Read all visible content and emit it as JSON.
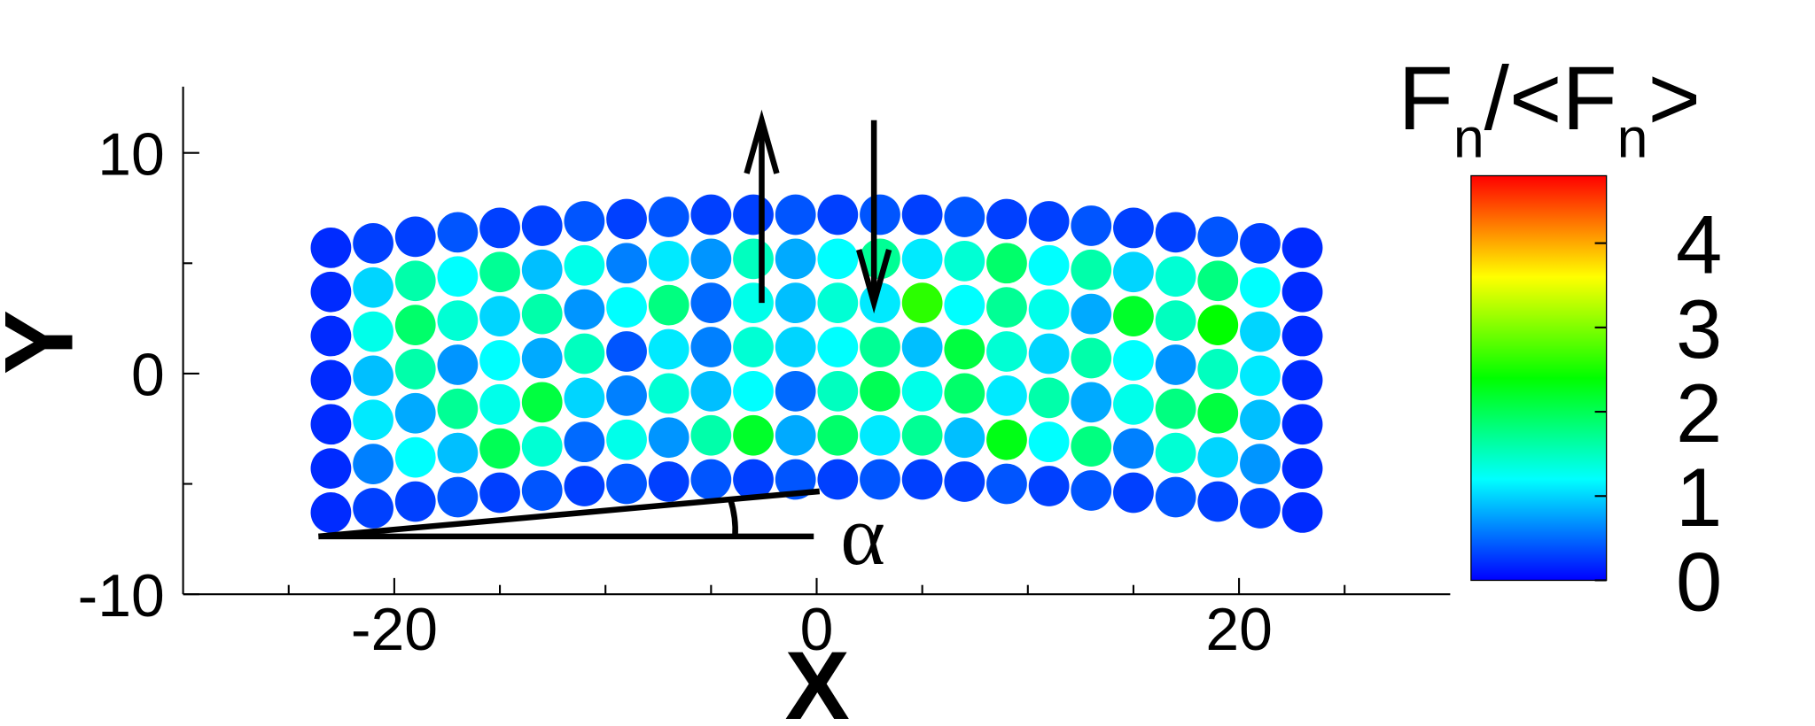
{
  "chart_data": {
    "type": "scatter",
    "x_label": "X",
    "y_label": "Y",
    "xlim": [
      -30,
      30
    ],
    "ylim": [
      -10,
      13
    ],
    "xticks": [
      -20,
      0,
      20
    ],
    "yticks": [
      -10,
      0,
      10
    ],
    "xminorticks": [
      -25,
      -15,
      -10,
      -5,
      5,
      10,
      15,
      25
    ],
    "yminorticks": [
      -5,
      5
    ],
    "colorbar_title_parts": [
      "F",
      "n",
      "/<F",
      "n",
      ">"
    ],
    "clim": [
      0,
      4.8
    ],
    "cticks": [
      0,
      1,
      2,
      3,
      4
    ],
    "colormap": [
      "#0000ff",
      "#00ffff",
      "#00ff00",
      "#ffff00",
      "#ff0000"
    ],
    "annotation": "α",
    "series": [
      {
        "x": [
          -23,
          -21,
          -19,
          -17,
          -15,
          -13,
          -11,
          -9,
          -7,
          -5,
          -3,
          -1,
          1,
          3,
          5,
          7,
          9,
          11,
          13,
          15,
          17,
          19,
          21,
          23
        ],
        "y": [
          -6.3,
          -6.1,
          -5.8,
          -5.6,
          -5.4,
          -5.3,
          -5.1,
          -5.0,
          -4.9,
          -4.8,
          -4.8,
          -4.8,
          -4.8,
          -4.8,
          -4.8,
          -4.9,
          -5.0,
          -5.1,
          -5.3,
          -5.4,
          -5.6,
          -5.8,
          -6.1,
          -6.3
        ],
        "values": [
          0.2,
          0.3,
          0.3,
          0.4,
          0.3,
          0.4,
          0.3,
          0.4,
          0.3,
          0.4,
          0.3,
          0.4,
          0.3,
          0.4,
          0.3,
          0.3,
          0.4,
          0.3,
          0.4,
          0.3,
          0.4,
          0.3,
          0.3,
          0.2
        ]
      },
      {
        "x": [
          -23,
          -21,
          -19,
          -17,
          -15,
          -13,
          -11,
          -9,
          -7,
          -5,
          -3,
          -1,
          1,
          3,
          5,
          7,
          9,
          11,
          13,
          15,
          17,
          19,
          21,
          23
        ],
        "y": [
          -4.3,
          -4.1,
          -3.8,
          -3.6,
          -3.4,
          -3.3,
          -3.1,
          -3.0,
          -2.9,
          -2.8,
          -2.8,
          -2.8,
          -2.8,
          -2.8,
          -2.8,
          -2.9,
          -3.0,
          -3.1,
          -3.3,
          -3.4,
          -3.6,
          -3.8,
          -4.1,
          -4.3
        ],
        "values": [
          0.2,
          0.6,
          1.2,
          0.9,
          2.0,
          1.4,
          0.5,
          1.3,
          0.7,
          1.6,
          2.2,
          0.8,
          1.9,
          1.1,
          1.7,
          0.9,
          2.3,
          1.2,
          1.8,
          0.6,
          1.4,
          1.0,
          0.7,
          0.2
        ]
      },
      {
        "x": [
          -23,
          -21,
          -19,
          -17,
          -15,
          -13,
          -11,
          -9,
          -7,
          -5,
          -3,
          -1,
          1,
          3,
          5,
          7,
          9,
          11,
          13,
          15,
          17,
          19,
          21,
          23
        ],
        "y": [
          -2.3,
          -2.1,
          -1.8,
          -1.6,
          -1.4,
          -1.3,
          -1.1,
          -1.0,
          -0.9,
          -0.8,
          -0.8,
          -0.8,
          -0.8,
          -0.8,
          -0.8,
          -0.9,
          -1.0,
          -1.1,
          -1.3,
          -1.4,
          -1.6,
          -1.8,
          -2.1,
          -2.3
        ],
        "values": [
          0.2,
          1.1,
          0.8,
          1.7,
          1.3,
          2.1,
          1.0,
          0.6,
          1.4,
          0.9,
          1.2,
          0.5,
          1.5,
          2.0,
          1.3,
          1.9,
          1.1,
          1.6,
          0.8,
          1.3,
          1.8,
          2.1,
          0.9,
          0.2
        ]
      },
      {
        "x": [
          -23,
          -21,
          -19,
          -17,
          -15,
          -13,
          -11,
          -9,
          -7,
          -5,
          -3,
          -1,
          1,
          3,
          5,
          7,
          9,
          11,
          13,
          15,
          17,
          19,
          21,
          23
        ],
        "y": [
          -0.3,
          -0.1,
          0.2,
          0.4,
          0.6,
          0.7,
          0.9,
          1.0,
          1.1,
          1.2,
          1.2,
          1.2,
          1.2,
          1.2,
          1.2,
          1.1,
          1.0,
          0.9,
          0.7,
          0.6,
          0.4,
          0.2,
          -0.1,
          -0.3
        ],
        "values": [
          0.2,
          0.9,
          1.6,
          0.7,
          1.2,
          0.8,
          1.5,
          0.4,
          1.1,
          0.6,
          1.4,
          1.0,
          1.2,
          1.7,
          0.9,
          2.1,
          1.4,
          1.0,
          1.6,
          1.2,
          0.7,
          1.5,
          1.1,
          0.2
        ]
      },
      {
        "x": [
          -23,
          -21,
          -19,
          -17,
          -15,
          -13,
          -11,
          -9,
          -7,
          -5,
          -3,
          -1,
          1,
          3,
          5,
          7,
          9,
          11,
          13,
          15,
          17,
          19,
          21,
          23
        ],
        "y": [
          1.7,
          1.9,
          2.2,
          2.4,
          2.6,
          2.7,
          2.9,
          3.0,
          3.1,
          3.2,
          3.2,
          3.2,
          3.2,
          3.2,
          3.2,
          3.1,
          3.0,
          2.9,
          2.7,
          2.6,
          2.4,
          2.2,
          1.9,
          1.7
        ],
        "values": [
          0.2,
          1.3,
          1.9,
          1.4,
          1.0,
          1.6,
          0.7,
          1.2,
          1.8,
          0.5,
          1.3,
          0.9,
          1.4,
          1.1,
          2.6,
          1.2,
          1.7,
          1.3,
          0.8,
          2.2,
          1.5,
          2.4,
          1.0,
          0.2
        ]
      },
      {
        "x": [
          -23,
          -21,
          -19,
          -17,
          -15,
          -13,
          -11,
          -9,
          -7,
          -5,
          -3,
          -1,
          1,
          3,
          5,
          7,
          9,
          11,
          13,
          15,
          17,
          19,
          21,
          23
        ],
        "y": [
          3.7,
          3.9,
          4.2,
          4.4,
          4.6,
          4.7,
          4.9,
          5.0,
          5.1,
          5.2,
          5.2,
          5.2,
          5.2,
          5.2,
          5.2,
          5.1,
          5.0,
          4.9,
          4.7,
          4.6,
          4.4,
          4.2,
          3.9,
          3.7
        ],
        "values": [
          0.2,
          1.0,
          1.6,
          1.2,
          1.7,
          0.9,
          1.3,
          0.6,
          1.1,
          0.7,
          1.5,
          0.8,
          1.2,
          1.7,
          1.1,
          1.4,
          1.9,
          1.2,
          1.6,
          1.0,
          1.4,
          1.8,
          1.2,
          0.2
        ]
      },
      {
        "x": [
          -23,
          -21,
          -19,
          -17,
          -15,
          -13,
          -11,
          -9,
          -7,
          -5,
          -3,
          -1,
          1,
          3,
          5,
          7,
          9,
          11,
          13,
          15,
          17,
          19,
          21,
          23
        ],
        "y": [
          5.7,
          5.9,
          6.2,
          6.4,
          6.6,
          6.7,
          6.9,
          7.0,
          7.1,
          7.2,
          7.2,
          7.2,
          7.2,
          7.2,
          7.2,
          7.1,
          7.0,
          6.9,
          6.7,
          6.6,
          6.4,
          6.2,
          5.9,
          5.7
        ],
        "values": [
          0.2,
          0.3,
          0.3,
          0.4,
          0.3,
          0.3,
          0.4,
          0.3,
          0.4,
          0.3,
          0.3,
          0.4,
          0.3,
          0.4,
          0.3,
          0.4,
          0.3,
          0.3,
          0.4,
          0.3,
          0.3,
          0.4,
          0.3,
          0.2
        ]
      }
    ]
  }
}
